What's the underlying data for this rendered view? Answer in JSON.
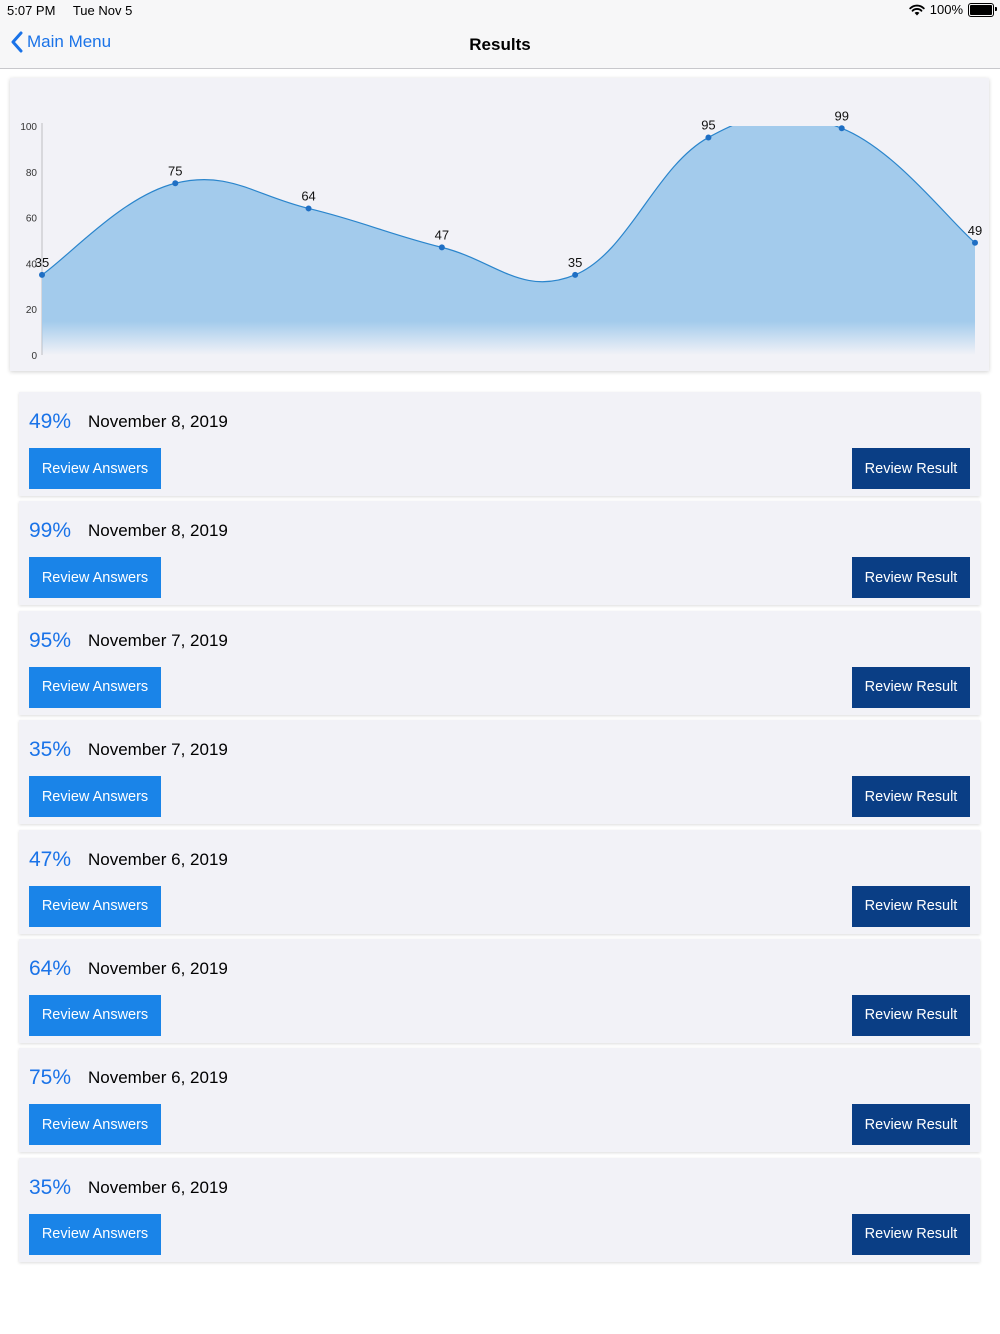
{
  "status_bar": {
    "time": "5:07 PM",
    "date": "Tue Nov 5",
    "battery": "100%",
    "battery_level": 1.0,
    "wifi_icon": "wifi-icon",
    "battery_icon": "battery-icon"
  },
  "nav": {
    "back_label": "Main Menu",
    "title": "Results",
    "back_icon": "chevron-left-icon"
  },
  "colors": {
    "accent": "#1a73e8",
    "answers_button": "#1a84e8",
    "result_button": "#0a3e85",
    "area_fill": "#a3cbec",
    "line": "#2a85cc"
  },
  "chart_data": {
    "type": "area",
    "x": [
      1,
      2,
      3,
      4,
      5,
      6,
      7,
      8
    ],
    "values": [
      35,
      75,
      64,
      47,
      35,
      95,
      99,
      49
    ],
    "data_labels": [
      "35",
      "75",
      "64",
      "47",
      "35",
      "95",
      "99",
      "49"
    ],
    "y_ticks": [
      "0",
      "20",
      "40",
      "60",
      "80",
      "100"
    ],
    "y_tick_values": [
      0,
      20,
      40,
      60,
      80,
      100
    ],
    "ylim": [
      0,
      100
    ],
    "grid": false,
    "legend": "none",
    "smooth": true,
    "title": "",
    "xlabel": "",
    "ylabel": ""
  },
  "results": [
    {
      "score": "49%",
      "date": "November 8, 2019",
      "answers_label": "Review Answers",
      "result_label": "Review Result"
    },
    {
      "score": "99%",
      "date": "November 8, 2019",
      "answers_label": "Review Answers",
      "result_label": "Review Result"
    },
    {
      "score": "95%",
      "date": "November 7, 2019",
      "answers_label": "Review Answers",
      "result_label": "Review Result"
    },
    {
      "score": "35%",
      "date": "November 7, 2019",
      "answers_label": "Review Answers",
      "result_label": "Review Result"
    },
    {
      "score": "47%",
      "date": "November 6, 2019",
      "answers_label": "Review Answers",
      "result_label": "Review Result"
    },
    {
      "score": "64%",
      "date": "November 6, 2019",
      "answers_label": "Review Answers",
      "result_label": "Review Result"
    },
    {
      "score": "75%",
      "date": "November 6, 2019",
      "answers_label": "Review Answers",
      "result_label": "Review Result"
    },
    {
      "score": "35%",
      "date": "November 6, 2019",
      "answers_label": "Review Answers",
      "result_label": "Review Result"
    }
  ]
}
